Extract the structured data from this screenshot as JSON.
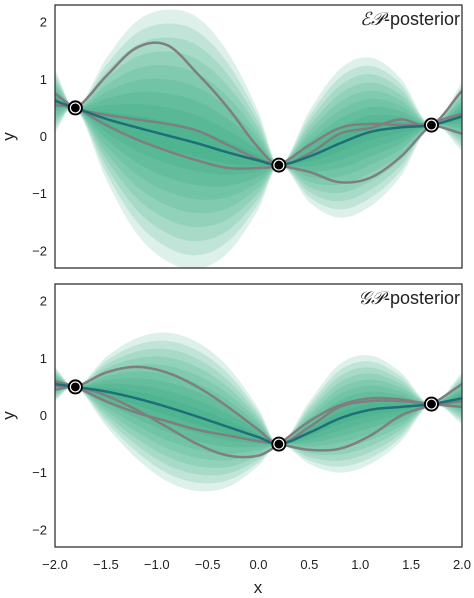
{
  "colors": {
    "band": "#1a9e74",
    "mean": "#1f6f7a",
    "sample": "#7f7f7f",
    "frame": "#333333",
    "point_fill": "#000000",
    "point_ring": "#ffffff"
  },
  "chart_data": [
    {
      "type": "line",
      "title": "ℰ𝒫-posterior",
      "title_script": "ℰ𝒫",
      "title_rest": "-posterior",
      "xlabel": "",
      "ylabel": "y",
      "xlim": [
        -2.0,
        2.0
      ],
      "ylim": [
        -2.3,
        2.3
      ],
      "xticks": [],
      "yticks": [
        -2,
        -1,
        0,
        1,
        2
      ],
      "ytick_labels": [
        "−2",
        "−1",
        "0",
        "1",
        "2"
      ],
      "grid": false,
      "observations": {
        "x": [
          -1.8,
          0.2,
          1.7
        ],
        "y": [
          0.5,
          -0.5,
          0.2
        ]
      },
      "x": [
        -2.0,
        -1.8,
        -1.5,
        -1.2,
        -0.9,
        -0.6,
        -0.3,
        0.0,
        0.2,
        0.5,
        0.8,
        1.1,
        1.4,
        1.7,
        2.0
      ],
      "mean": [
        0.62,
        0.5,
        0.31,
        0.16,
        0.02,
        -0.12,
        -0.28,
        -0.42,
        -0.5,
        -0.35,
        -0.12,
        0.08,
        0.16,
        0.2,
        0.35
      ],
      "band_halfwidth": [
        0.55,
        0.0,
        1.05,
        1.85,
        2.2,
        2.2,
        1.75,
        0.85,
        0.0,
        0.8,
        1.3,
        1.3,
        0.85,
        0.0,
        0.6
      ],
      "series": [
        {
          "values": [
            0.65,
            0.5,
            1.05,
            1.55,
            1.6,
            1.1,
            0.5,
            -0.2,
            -0.5,
            -0.3,
            0.05,
            0.15,
            0.3,
            0.2,
            0.8
          ]
        },
        {
          "values": [
            0.75,
            0.5,
            0.38,
            0.3,
            0.22,
            0.1,
            -0.15,
            -0.4,
            -0.5,
            -0.62,
            -0.8,
            -0.72,
            -0.35,
            0.2,
            0.4
          ]
        },
        {
          "values": [
            0.55,
            0.5,
            0.2,
            -0.05,
            -0.25,
            -0.42,
            -0.55,
            -0.55,
            -0.5,
            -0.15,
            0.15,
            0.22,
            0.2,
            0.2,
            0.05
          ]
        }
      ]
    },
    {
      "type": "line",
      "title": "𝒢𝒫-posterior",
      "title_script": "𝒢𝒫",
      "title_rest": "-posterior",
      "xlabel": "x",
      "ylabel": "y",
      "xlim": [
        -2.0,
        2.0
      ],
      "ylim": [
        -2.3,
        2.3
      ],
      "xticks": [
        -2.0,
        -1.5,
        -1.0,
        -0.5,
        0.0,
        0.5,
        1.0,
        1.5,
        2.0
      ],
      "xtick_labels": [
        "−2.0",
        "−1.5",
        "−1.0",
        "−0.5",
        "0.0",
        "0.5",
        "1.0",
        "1.5",
        "2.0"
      ],
      "yticks": [
        -2,
        -1,
        0,
        1,
        2
      ],
      "ytick_labels": [
        "−2",
        "−1",
        "0",
        "1",
        "2"
      ],
      "grid": false,
      "observations": {
        "x": [
          -1.8,
          0.2,
          1.7
        ],
        "y": [
          0.5,
          -0.5,
          0.2
        ]
      },
      "x": [
        -2.0,
        -1.8,
        -1.5,
        -1.2,
        -0.9,
        -0.6,
        -0.3,
        0.0,
        0.2,
        0.5,
        0.8,
        1.1,
        1.4,
        1.7,
        2.0
      ],
      "mean": [
        0.55,
        0.5,
        0.42,
        0.3,
        0.15,
        -0.02,
        -0.2,
        -0.38,
        -0.5,
        -0.3,
        -0.05,
        0.1,
        0.15,
        0.2,
        0.3
      ],
      "band_halfwidth": [
        0.3,
        0.0,
        0.6,
        1.05,
        1.3,
        1.3,
        1.05,
        0.5,
        0.0,
        0.55,
        0.95,
        0.95,
        0.6,
        0.0,
        0.45
      ],
      "series": [
        {
          "values": [
            0.52,
            0.5,
            0.75,
            0.85,
            0.75,
            0.5,
            0.15,
            -0.25,
            -0.5,
            -0.2,
            0.15,
            0.25,
            0.25,
            0.2,
            0.15
          ]
        },
        {
          "values": [
            0.45,
            0.5,
            0.35,
            0.1,
            -0.2,
            -0.5,
            -0.7,
            -0.7,
            -0.5,
            -0.1,
            0.18,
            0.3,
            0.28,
            0.2,
            0.25
          ]
        },
        {
          "values": [
            0.6,
            0.5,
            0.25,
            0.05,
            -0.1,
            -0.25,
            -0.35,
            -0.45,
            -0.5,
            -0.6,
            -0.58,
            -0.35,
            0.0,
            0.2,
            0.55
          ]
        }
      ]
    }
  ]
}
